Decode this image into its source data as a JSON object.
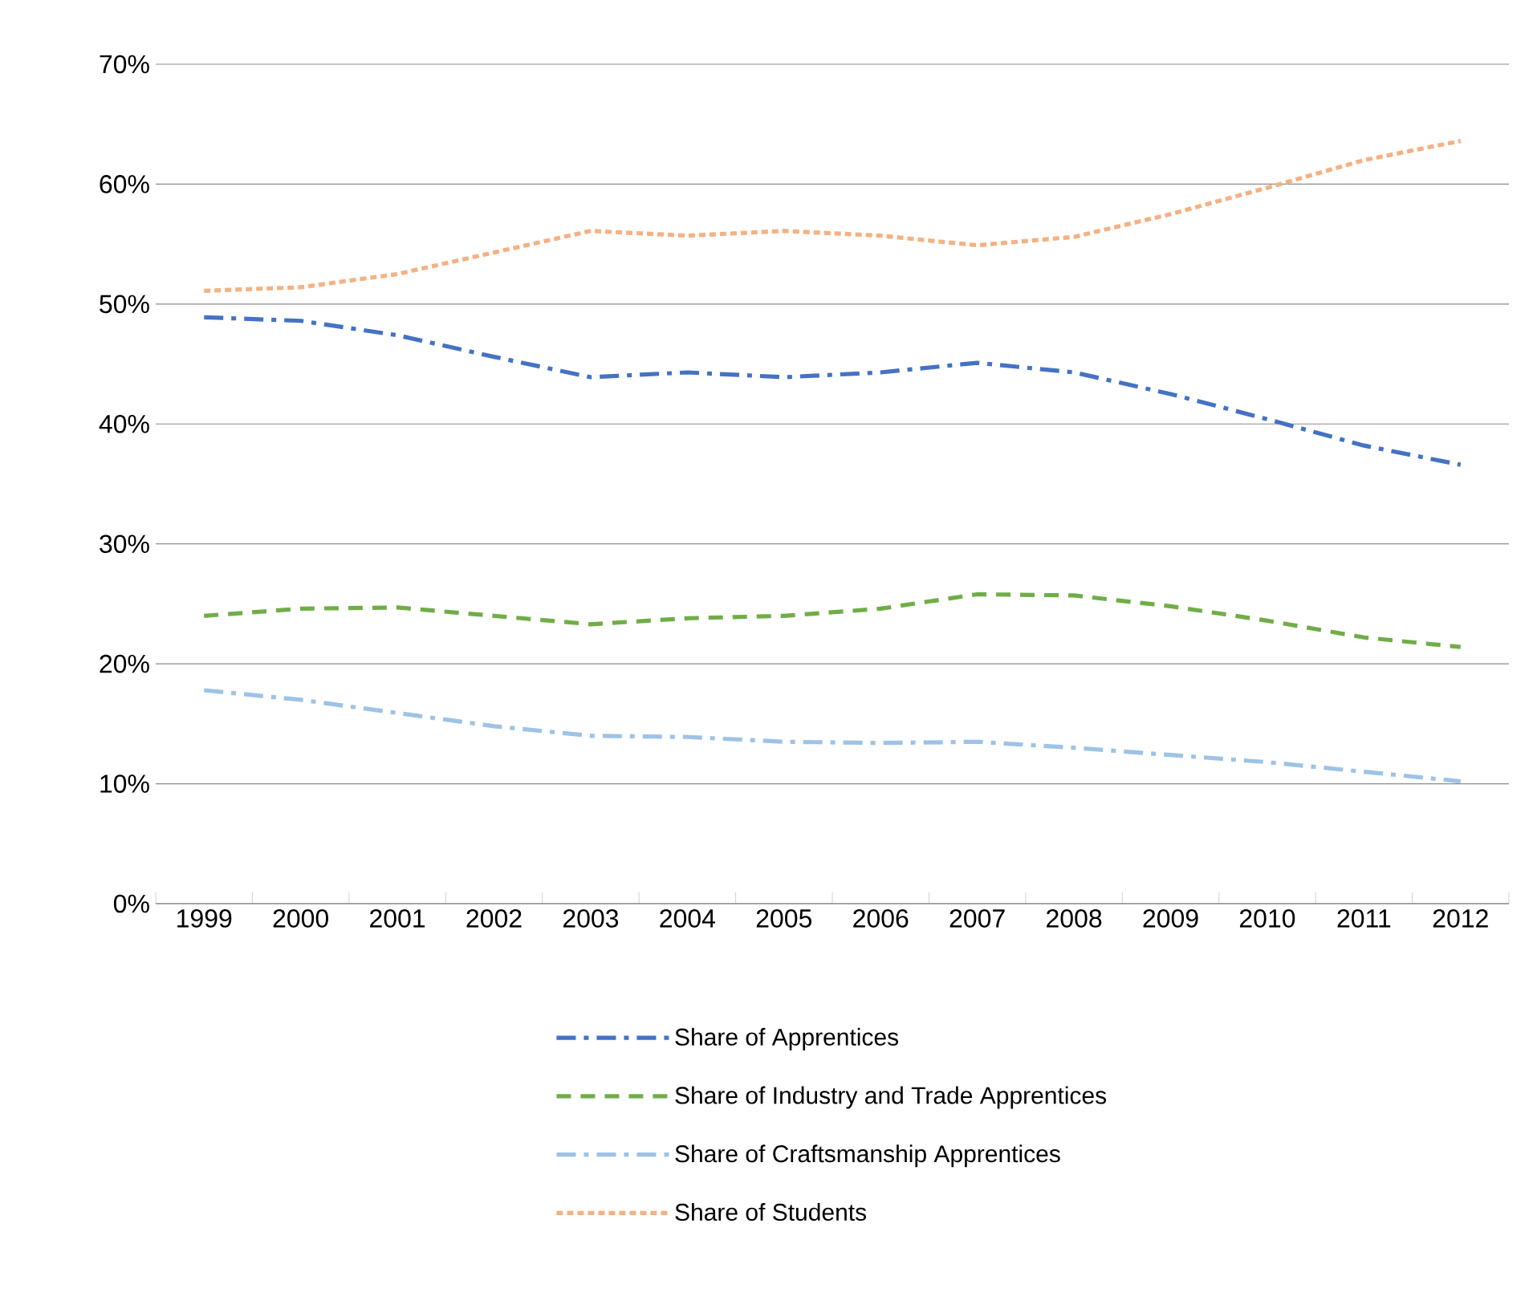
{
  "chart_data": {
    "type": "line",
    "categories": [
      "1999",
      "2000",
      "2001",
      "2002",
      "2003",
      "2004",
      "2005",
      "2006",
      "2007",
      "2008",
      "2009",
      "2010",
      "2011",
      "2012"
    ],
    "series": [
      {
        "name": "Share of Apprentices",
        "color": "#4472c4",
        "line_style": "dashdot",
        "values": [
          48.9,
          48.6,
          47.4,
          45.6,
          43.9,
          44.3,
          43.9,
          44.3,
          45.1,
          44.3,
          42.5,
          40.4,
          38.2,
          36.6
        ]
      },
      {
        "name": "Share of Industry and Trade Apprentices",
        "color": "#70ad47",
        "line_style": "dashed",
        "values": [
          24.0,
          24.6,
          24.7,
          24.0,
          23.3,
          23.8,
          24.0,
          24.6,
          25.8,
          25.7,
          24.8,
          23.6,
          22.2,
          21.4
        ]
      },
      {
        "name": "Share of Craftsmanship Apprentices",
        "color": "#9dc3e6",
        "line_style": "dashdot",
        "values": [
          17.8,
          17.0,
          15.9,
          14.8,
          14.0,
          13.9,
          13.5,
          13.4,
          13.5,
          13.0,
          12.4,
          11.8,
          11.0,
          10.2
        ]
      },
      {
        "name": "Share of Students",
        "color": "#f4b183",
        "line_style": "dotted",
        "values": [
          51.1,
          51.4,
          52.5,
          54.3,
          56.1,
          55.7,
          56.1,
          55.7,
          54.9,
          55.6,
          57.5,
          59.7,
          62.0,
          63.6
        ]
      }
    ],
    "ylim": [
      0,
      70
    ],
    "yticks": [
      {
        "value": 0,
        "label": "0%"
      },
      {
        "value": 10,
        "label": "10%"
      },
      {
        "value": 20,
        "label": "20%"
      },
      {
        "value": 30,
        "label": "30%"
      },
      {
        "value": 40,
        "label": "40%"
      },
      {
        "value": 50,
        "label": "50%"
      },
      {
        "value": 60,
        "label": "60%"
      },
      {
        "value": 70,
        "label": "70%"
      }
    ],
    "grid": "y",
    "legend": "bottom",
    "marker": "none"
  }
}
